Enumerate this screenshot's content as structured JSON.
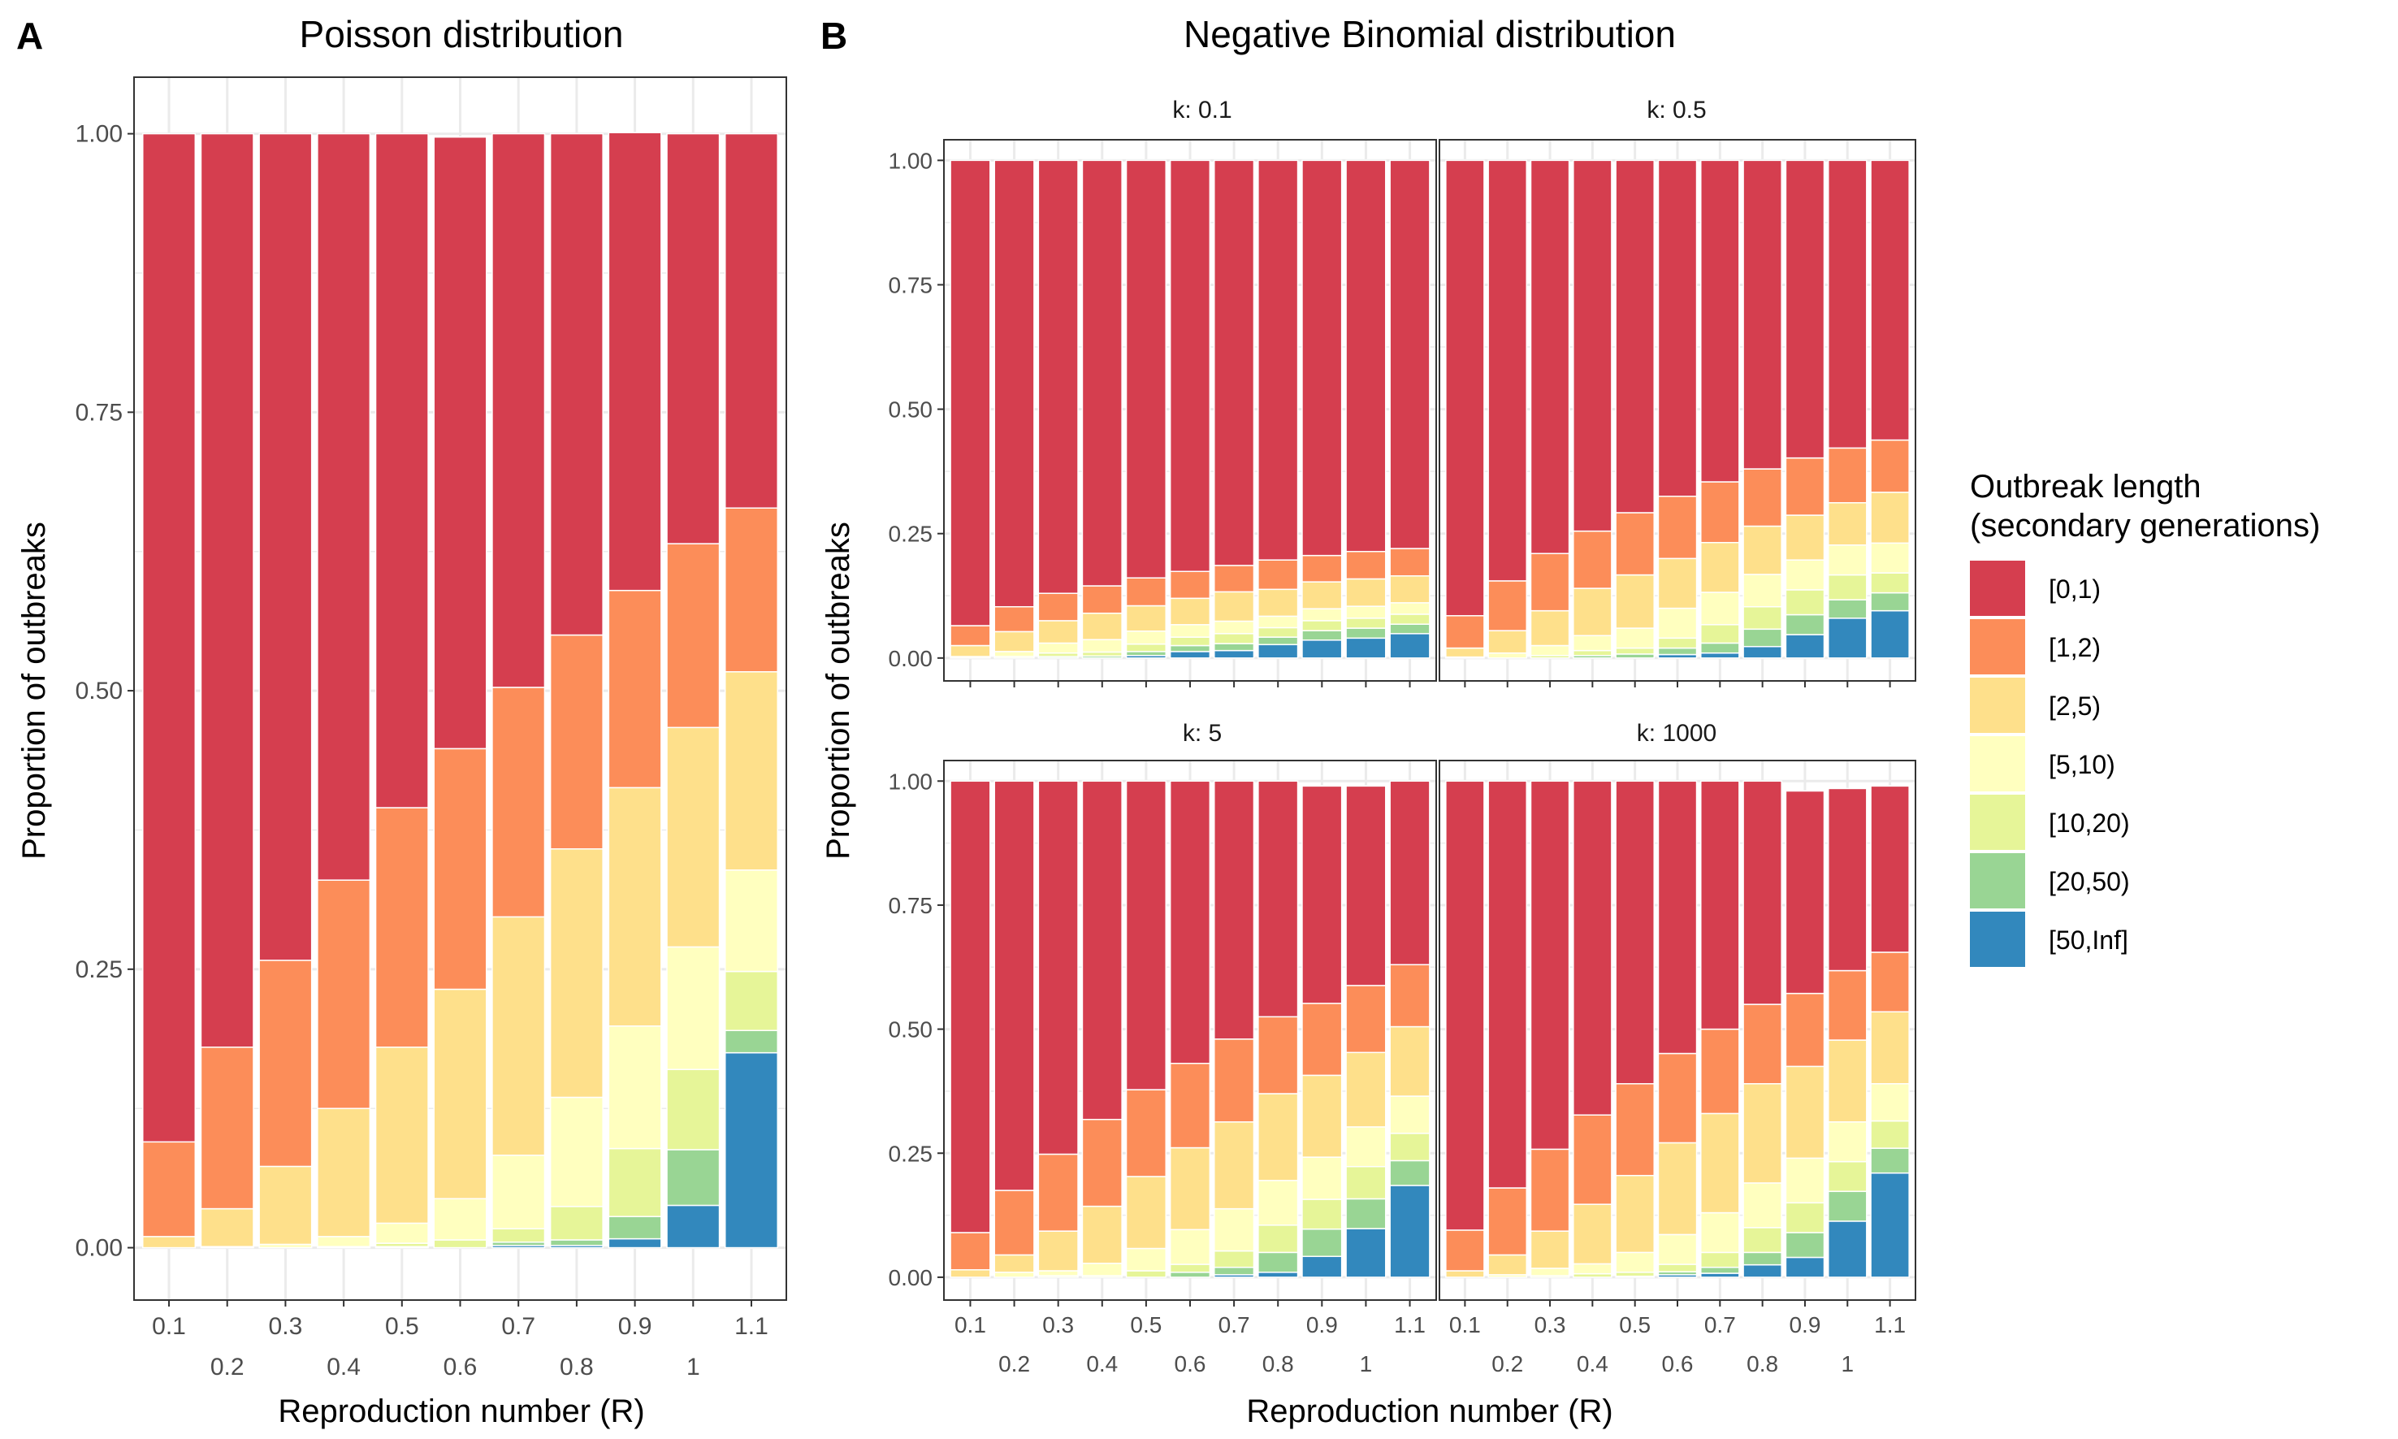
{
  "panel_labels": {
    "a": "A",
    "b": "B"
  },
  "titles": {
    "a": "Poisson distribution",
    "b": "Negative Binomial distribution"
  },
  "axis": {
    "ylabel": "Proportion of outbreaks",
    "xlabel": "Reproduction number (R)",
    "y_ticks": [
      "0.00",
      "0.25",
      "0.50",
      "0.75",
      "1.00"
    ],
    "x_ticks": [
      "0.1",
      "0.2",
      "0.3",
      "0.4",
      "0.5",
      "0.6",
      "0.7",
      "0.8",
      "0.9",
      "1",
      "1.1"
    ]
  },
  "legend": {
    "title_line1": "Outbreak length",
    "title_line2": "(secondary generations)",
    "items": [
      "[0,1)",
      "[1,2)",
      "[2,5)",
      "[5,10)",
      "[10,20)",
      "[20,50)",
      "[50,Inf]"
    ]
  },
  "colors": {
    "[0,1)": "#D53E4F",
    "[1,2)": "#FC8D59",
    "[2,5)": "#FEE08B",
    "[5,10)": "#FFFFBF",
    "[10,20)": "#E6F598",
    "[20,50)": "#99D594",
    "[50,Inf]": "#3288BD",
    "panel_bg": "#FFFFFF",
    "grid": "#EBEBEB",
    "strip_text": "#1A1A1A"
  },
  "chart_data": [
    {
      "id": "A",
      "type": "bar",
      "stacked": true,
      "title": "Poisson distribution",
      "xlabel": "Reproduction number (R)",
      "ylabel": "Proportion of outbreaks",
      "ylim": [
        0,
        1
      ],
      "categories": [
        "0.1",
        "0.2",
        "0.3",
        "0.4",
        "0.5",
        "0.6",
        "0.7",
        "0.8",
        "0.9",
        "1",
        "1.1"
      ],
      "series": [
        {
          "name": "[0,1)",
          "values": [
            0.905,
            0.82,
            0.742,
            0.67,
            0.605,
            0.549,
            0.497,
            0.45,
            0.411,
            0.368,
            0.336
          ]
        },
        {
          "name": "[1,2)",
          "values": [
            0.085,
            0.145,
            0.185,
            0.205,
            0.215,
            0.216,
            0.206,
            0.192,
            0.177,
            0.165,
            0.147
          ]
        },
        {
          "name": "[2,5)",
          "values": [
            0.01,
            0.034,
            0.07,
            0.115,
            0.158,
            0.188,
            0.214,
            0.223,
            0.214,
            0.197,
            0.178
          ]
        },
        {
          "name": "[5,10)",
          "values": [
            0.0,
            0.001,
            0.003,
            0.009,
            0.018,
            0.037,
            0.066,
            0.098,
            0.11,
            0.11,
            0.091
          ]
        },
        {
          "name": "[10,20)",
          "values": [
            0.0,
            0.0,
            0.0,
            0.001,
            0.003,
            0.007,
            0.012,
            0.03,
            0.061,
            0.072,
            0.053
          ]
        },
        {
          "name": "[20,50)",
          "values": [
            0.0,
            0.0,
            0.0,
            0.0,
            0.001,
            0.0,
            0.003,
            0.005,
            0.02,
            0.05,
            0.02
          ]
        },
        {
          "name": "[50,Inf]",
          "values": [
            0.0,
            0.0,
            0.0,
            0.0,
            0.0,
            0.0,
            0.002,
            0.002,
            0.008,
            0.038,
            0.175
          ]
        }
      ]
    },
    {
      "id": "B1",
      "type": "bar",
      "stacked": true,
      "facet": "k: 0.1",
      "ylim": [
        0,
        1
      ],
      "categories": [
        "0.1",
        "0.2",
        "0.3",
        "0.4",
        "0.5",
        "0.6",
        "0.7",
        "0.8",
        "0.9",
        "1",
        "1.1"
      ],
      "series": [
        {
          "name": "[0,1)",
          "values": [
            0.935,
            0.897,
            0.87,
            0.855,
            0.839,
            0.826,
            0.814,
            0.803,
            0.794,
            0.786,
            0.78
          ]
        },
        {
          "name": "[1,2)",
          "values": [
            0.04,
            0.05,
            0.055,
            0.055,
            0.056,
            0.054,
            0.053,
            0.059,
            0.053,
            0.055,
            0.055
          ]
        },
        {
          "name": "[2,5)",
          "values": [
            0.022,
            0.04,
            0.045,
            0.053,
            0.051,
            0.053,
            0.059,
            0.054,
            0.054,
            0.055,
            0.054
          ]
        },
        {
          "name": "[5,10)",
          "values": [
            0.003,
            0.01,
            0.02,
            0.025,
            0.026,
            0.025,
            0.025,
            0.023,
            0.024,
            0.024,
            0.023
          ]
        },
        {
          "name": "[10,20)",
          "values": [
            0.0,
            0.003,
            0.007,
            0.008,
            0.015,
            0.017,
            0.02,
            0.019,
            0.02,
            0.02,
            0.02
          ]
        },
        {
          "name": "[20,50)",
          "values": [
            0.0,
            0.0,
            0.003,
            0.004,
            0.008,
            0.012,
            0.014,
            0.015,
            0.019,
            0.02,
            0.019
          ]
        },
        {
          "name": "[50,Inf]",
          "values": [
            0.0,
            0.0,
            0.0,
            0.0,
            0.005,
            0.013,
            0.015,
            0.027,
            0.036,
            0.04,
            0.049
          ]
        }
      ]
    },
    {
      "id": "B2",
      "type": "bar",
      "stacked": true,
      "facet": "k: 0.5",
      "ylim": [
        0,
        1
      ],
      "categories": [
        "0.1",
        "0.2",
        "0.3",
        "0.4",
        "0.5",
        "0.6",
        "0.7",
        "0.8",
        "0.9",
        "1",
        "1.1"
      ],
      "series": [
        {
          "name": "[0,1)",
          "values": [
            0.915,
            0.845,
            0.79,
            0.745,
            0.708,
            0.675,
            0.646,
            0.62,
            0.598,
            0.578,
            0.562
          ]
        },
        {
          "name": "[1,2)",
          "values": [
            0.065,
            0.1,
            0.115,
            0.115,
            0.125,
            0.125,
            0.122,
            0.115,
            0.115,
            0.11,
            0.105
          ]
        },
        {
          "name": "[2,5)",
          "values": [
            0.018,
            0.045,
            0.07,
            0.095,
            0.107,
            0.1,
            0.1,
            0.097,
            0.09,
            0.085,
            0.102
          ]
        },
        {
          "name": "[5,10)",
          "values": [
            0.002,
            0.01,
            0.02,
            0.03,
            0.04,
            0.06,
            0.065,
            0.065,
            0.06,
            0.06,
            0.06
          ]
        },
        {
          "name": "[10,20)",
          "values": [
            0.0,
            0.0,
            0.005,
            0.01,
            0.012,
            0.02,
            0.037,
            0.045,
            0.05,
            0.05,
            0.04
          ]
        },
        {
          "name": "[20,50)",
          "values": [
            0.0,
            0.0,
            0.0,
            0.005,
            0.008,
            0.013,
            0.02,
            0.035,
            0.04,
            0.037,
            0.036
          ]
        },
        {
          "name": "[50,Inf]",
          "values": [
            0.0,
            0.0,
            0.0,
            0.0,
            0.0,
            0.007,
            0.01,
            0.023,
            0.047,
            0.08,
            0.095
          ]
        }
      ]
    },
    {
      "id": "B3",
      "type": "bar",
      "stacked": true,
      "facet": "k: 5",
      "ylim": [
        0,
        1
      ],
      "categories": [
        "0.1",
        "0.2",
        "0.3",
        "0.4",
        "0.5",
        "0.6",
        "0.7",
        "0.8",
        "0.9",
        "1",
        "1.1"
      ],
      "series": [
        {
          "name": "[0,1)",
          "values": [
            0.91,
            0.825,
            0.752,
            0.682,
            0.622,
            0.569,
            0.52,
            0.475,
            0.438,
            0.402,
            0.37
          ]
        },
        {
          "name": "[1,2)",
          "values": [
            0.075,
            0.13,
            0.155,
            0.175,
            0.175,
            0.17,
            0.167,
            0.155,
            0.145,
            0.135,
            0.125
          ]
        },
        {
          "name": "[2,5)",
          "values": [
            0.015,
            0.035,
            0.08,
            0.115,
            0.145,
            0.165,
            0.175,
            0.175,
            0.165,
            0.15,
            0.14
          ]
        },
        {
          "name": "[5,10)",
          "values": [
            0.0,
            0.01,
            0.01,
            0.025,
            0.045,
            0.07,
            0.085,
            0.09,
            0.085,
            0.08,
            0.075
          ]
        },
        {
          "name": "[10,20)",
          "values": [
            0.0,
            0.0,
            0.003,
            0.003,
            0.013,
            0.016,
            0.033,
            0.055,
            0.06,
            0.065,
            0.055
          ]
        },
        {
          "name": "[20,50)",
          "values": [
            0.0,
            0.0,
            0.0,
            0.0,
            0.0,
            0.01,
            0.015,
            0.04,
            0.055,
            0.06,
            0.05
          ]
        },
        {
          "name": "[50,Inf]",
          "values": [
            0.0,
            0.0,
            0.0,
            0.0,
            0.0,
            0.0,
            0.005,
            0.01,
            0.042,
            0.098,
            0.185
          ]
        }
      ]
    },
    {
      "id": "B4",
      "type": "bar",
      "stacked": true,
      "facet": "k: 1000",
      "ylim": [
        0,
        1
      ],
      "categories": [
        "0.1",
        "0.2",
        "0.3",
        "0.4",
        "0.5",
        "0.6",
        "0.7",
        "0.8",
        "0.9",
        "1",
        "1.1"
      ],
      "series": [
        {
          "name": "[0,1)",
          "values": [
            0.905,
            0.82,
            0.742,
            0.673,
            0.61,
            0.549,
            0.5,
            0.45,
            0.408,
            0.367,
            0.335
          ]
        },
        {
          "name": "[1,2)",
          "values": [
            0.082,
            0.135,
            0.165,
            0.18,
            0.185,
            0.18,
            0.17,
            0.16,
            0.147,
            0.14,
            0.12
          ]
        },
        {
          "name": "[2,5)",
          "values": [
            0.013,
            0.04,
            0.075,
            0.12,
            0.155,
            0.185,
            0.2,
            0.2,
            0.185,
            0.165,
            0.145
          ]
        },
        {
          "name": "[5,10)",
          "values": [
            0.0,
            0.005,
            0.015,
            0.02,
            0.04,
            0.06,
            0.08,
            0.09,
            0.09,
            0.08,
            0.075
          ]
        },
        {
          "name": "[10,20)",
          "values": [
            0.0,
            0.0,
            0.003,
            0.007,
            0.008,
            0.015,
            0.03,
            0.05,
            0.06,
            0.06,
            0.055
          ]
        },
        {
          "name": "[20,50)",
          "values": [
            0.0,
            0.0,
            0.0,
            0.0,
            0.002,
            0.006,
            0.012,
            0.025,
            0.05,
            0.06,
            0.05
          ]
        },
        {
          "name": "[50,Inf]",
          "values": [
            0.0,
            0.0,
            0.0,
            0.0,
            0.0,
            0.005,
            0.008,
            0.025,
            0.04,
            0.113,
            0.21
          ]
        }
      ]
    }
  ]
}
